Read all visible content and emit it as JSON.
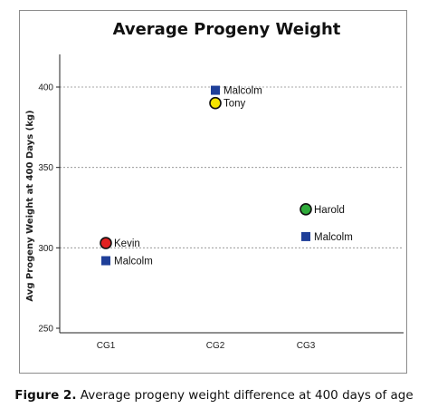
{
  "chart_data": {
    "type": "scatter",
    "title": "Average Progeny Weight",
    "xlabel": "",
    "ylabel": "Avg Progeny  Weight at 400 Days (kg)",
    "categories": [
      "CG1",
      "CG2",
      "CG3"
    ],
    "yticks": [
      250,
      300,
      350,
      400
    ],
    "ylim": [
      250,
      420
    ],
    "grid": "horizontal-dashed",
    "points": [
      {
        "label": "Kevin",
        "category": "CG1",
        "y": 303,
        "marker": "circle",
        "color": "#e02020"
      },
      {
        "label": "Malcolm",
        "category": "CG1",
        "y": 292,
        "marker": "square",
        "color": "#1f3f99"
      },
      {
        "label": "Malcolm",
        "category": "CG2",
        "y": 398,
        "marker": "square",
        "color": "#1f3f99"
      },
      {
        "label": "Tony",
        "category": "CG2",
        "y": 390,
        "marker": "circle",
        "color": "#f5e400"
      },
      {
        "label": "Harold",
        "category": "CG3",
        "y": 324,
        "marker": "circle",
        "color": "#2faa3a"
      },
      {
        "label": "Malcolm",
        "category": "CG3",
        "y": 307,
        "marker": "square",
        "color": "#1f3f99"
      }
    ]
  },
  "caption": {
    "lead": "Figure 2.",
    "text": " Average progeny weight difference at 400 days of age"
  }
}
